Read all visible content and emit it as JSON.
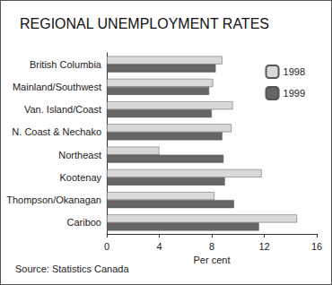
{
  "chart_data": {
    "type": "bar",
    "orientation": "horizontal",
    "title": "REGIONAL UNEMPLOYMENT RATES",
    "x_label": "Per cent",
    "source": "Source: Statistics Canada",
    "categories": [
      "British Columbia",
      "Mainland/Southwest",
      "Van. Island/Coast",
      "N. Coast & Nechako",
      "Northeast",
      "Kootenay",
      "Thompson/Okanagan",
      "Cariboo"
    ],
    "series": [
      {
        "name": "1998",
        "color": "#d9d9d9",
        "values": [
          8.8,
          8.1,
          9.6,
          9.5,
          4.0,
          11.8,
          8.2,
          14.5
        ]
      },
      {
        "name": "1999",
        "color": "#666666",
        "values": [
          8.3,
          7.8,
          8.0,
          8.8,
          8.9,
          9.0,
          9.7,
          11.6
        ]
      }
    ],
    "xlim": [
      0,
      16
    ],
    "xticks": [
      0,
      4,
      8,
      12,
      16
    ],
    "grid": false,
    "legend": "top-right"
  }
}
